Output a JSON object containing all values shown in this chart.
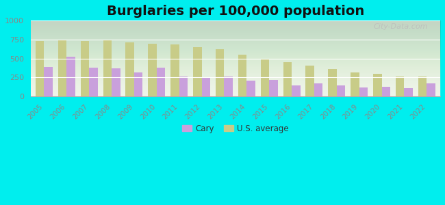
{
  "title": "Burglaries per 100,000 population",
  "years": [
    2005,
    2006,
    2007,
    2008,
    2009,
    2010,
    2011,
    2012,
    2013,
    2014,
    2015,
    2016,
    2017,
    2018,
    2019,
    2020,
    2021,
    2022
  ],
  "cary": [
    390,
    520,
    375,
    370,
    320,
    375,
    260,
    255,
    258,
    210,
    215,
    145,
    170,
    145,
    115,
    125,
    108,
    170
  ],
  "us_avg": [
    730,
    740,
    730,
    740,
    715,
    695,
    690,
    650,
    620,
    550,
    495,
    450,
    405,
    360,
    320,
    300,
    265,
    260
  ],
  "cary_color": "#c9a0dc",
  "us_color": "#c8cc88",
  "bg_color": "#00eeee",
  "plot_bg_color": "#eef3e8",
  "ylabel_ticks": [
    0,
    250,
    500,
    750,
    1000
  ],
  "ylim": [
    0,
    1000
  ],
  "legend_cary": "Cary",
  "legend_us": "U.S. average",
  "title_fontsize": 14,
  "watermark": "City-Data.com"
}
